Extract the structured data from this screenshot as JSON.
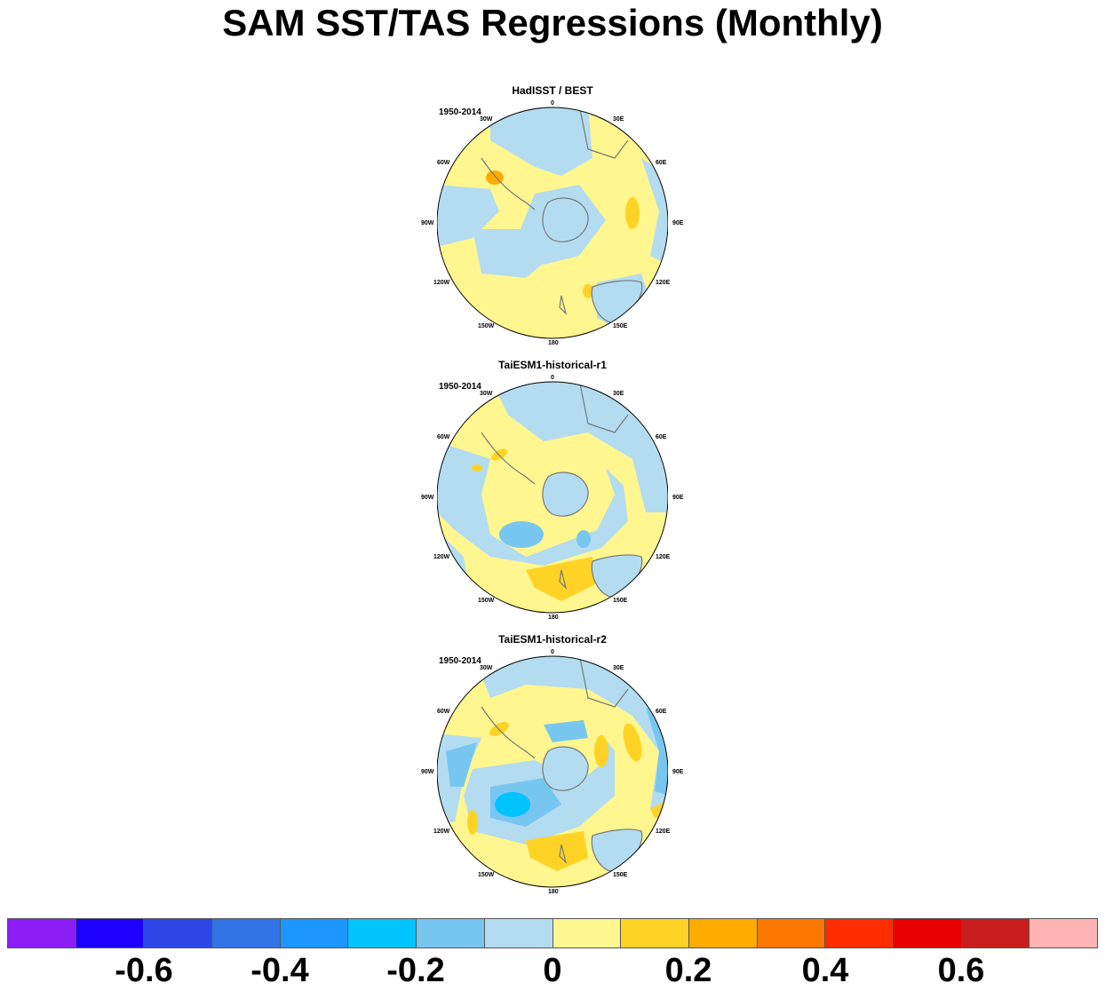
{
  "title": "SAM SST/TAS Regressions (Monthly)",
  "colors": {
    "ocean_neutral_neg": "#b3dcf1",
    "neutral_pos": "#fff68f",
    "weak_pos": "#ffd326",
    "mid_pos": "#fdab00",
    "weak_neg": "#77c6f0",
    "mid_neg": "#00bdff",
    "coast": "#777777"
  },
  "panels": [
    {
      "title": "HadISST / BEST",
      "period": "1950-2014"
    },
    {
      "title": "TaiESM1-historical-r1",
      "period": "1950-2014"
    },
    {
      "title": "TaiESM1-historical-r2",
      "period": "1950-2014"
    }
  ],
  "longitude_labels": [
    "0",
    "30E",
    "60E",
    "90E",
    "120E",
    "150E",
    "180",
    "150W",
    "120W",
    "90W",
    "60W",
    "30W"
  ],
  "colorbar": {
    "colors": [
      "#8c1ef5",
      "#1e00ff",
      "#2d46e6",
      "#3273e6",
      "#1e96ff",
      "#00c3ff",
      "#77c6f0",
      "#b3dcf1",
      "#fff68f",
      "#ffd326",
      "#fdab00",
      "#fd7800",
      "#ff2d00",
      "#e60000",
      "#c81e1e",
      "#ffb3b3"
    ],
    "labels": [
      "-0.6",
      "-0.4",
      "-0.2",
      "0",
      "0.2",
      "0.4",
      "0.6"
    ]
  }
}
